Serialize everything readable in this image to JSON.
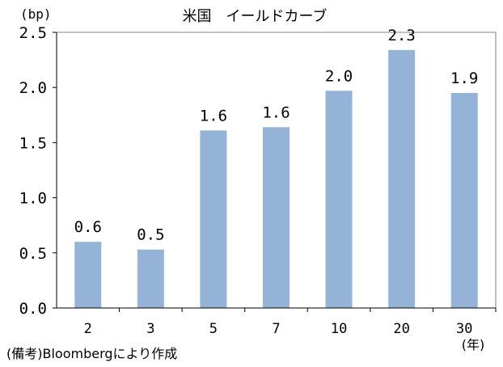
{
  "chart_data": {
    "type": "bar",
    "title": "米国　イールドカーブ",
    "yunit": "(bp)",
    "xunit": "(年)",
    "categories": [
      "2",
      "3",
      "5",
      "7",
      "10",
      "20",
      "30"
    ],
    "values": [
      0.6,
      0.53,
      1.61,
      1.64,
      1.97,
      2.34,
      1.95
    ],
    "data_labels": [
      "0.6",
      "0.5",
      "1.6",
      "1.6",
      "2.0",
      "2.3",
      "1.9"
    ],
    "ylim": [
      0,
      2.5
    ],
    "yticks": [
      "0.0",
      "0.5",
      "1.0",
      "1.5",
      "2.0",
      "2.5"
    ],
    "grid": false,
    "bar_color": "#95b3d7",
    "source": "(備考)Bloombergにより作成"
  }
}
